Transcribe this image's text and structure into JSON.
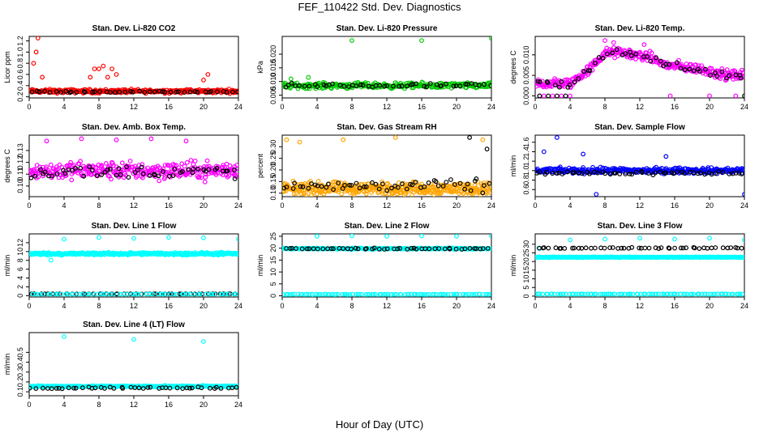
{
  "figure": {
    "title": "FEF_110422  Std. Dev. Diagnostics",
    "xlabel": "Hour of Day (UTC)"
  },
  "chart_data": [
    {
      "type": "scatter",
      "title": "Stan. Dev. Li-820 CO2",
      "ylabel": "Licor ppm",
      "xlim": [
        0,
        24
      ],
      "ylim": [
        0.18,
        1.28
      ],
      "xticks": [
        0,
        4,
        8,
        12,
        16,
        20,
        24
      ],
      "yticks": [
        0.2,
        0.4,
        0.6,
        0.8,
        1.0,
        1.2
      ],
      "ytick_labels": [
        "0.2",
        "0.4",
        "0.6",
        "0.8",
        "1.0",
        "1.2"
      ],
      "grid": false,
      "series": [
        {
          "color": "#ff0000",
          "base": 0.3,
          "spread": 0.05,
          "density": 300,
          "outliers": [
            [
              0.8,
              1.0
            ],
            [
              1.0,
              1.25
            ],
            [
              0.5,
              0.8
            ],
            [
              7.5,
              0.7
            ],
            [
              8.0,
              0.7
            ],
            [
              8.5,
              0.75
            ],
            [
              9.0,
              0.55
            ],
            [
              9.5,
              0.7
            ],
            [
              10.0,
              0.6
            ],
            [
              20.0,
              0.5
            ],
            [
              20.5,
              0.6
            ],
            [
              1.5,
              0.55
            ],
            [
              7.0,
              0.55
            ]
          ]
        },
        {
          "color": "#000000",
          "base": 0.29,
          "spread": 0.02,
          "density": 45,
          "outliers": []
        }
      ]
    },
    {
      "type": "scatter",
      "title": "Stan. Dev. Li-820 Pressure",
      "ylabel": "kPa",
      "xlim": [
        0,
        24
      ],
      "ylim": [
        0.004,
        0.0265
      ],
      "xticks": [
        0,
        4,
        8,
        12,
        16,
        20,
        24
      ],
      "yticks": [
        0.005,
        0.01,
        0.015,
        0.02
      ],
      "ytick_labels": [
        "0.005",
        "0.010",
        "0.015",
        "0.020"
      ],
      "grid": false,
      "series": [
        {
          "color": "#00cc00",
          "base": 0.0085,
          "spread": 0.0015,
          "density": 300,
          "outliers": [
            [
              8.0,
              0.025
            ],
            [
              16.0,
              0.025
            ],
            [
              24.0,
              0.0258
            ],
            [
              1.0,
              0.011
            ],
            [
              3.0,
              0.0115
            ]
          ]
        },
        {
          "color": "#000000",
          "base": 0.0085,
          "spread": 0.0012,
          "density": 50,
          "outliers": []
        }
      ]
    },
    {
      "type": "scatter",
      "title": "Stan. Dev. Li-820 Temp.",
      "ylabel": "degrees C",
      "xlim": [
        0,
        24
      ],
      "ylim": [
        -0.0005,
        0.0145
      ],
      "xticks": [
        0,
        4,
        8,
        12,
        16,
        20,
        24
      ],
      "yticks": [
        0.0,
        0.005,
        0.01
      ],
      "ytick_labels": [
        "0.000",
        "0.005",
        "0.010"
      ],
      "grid": false,
      "profile": [
        [
          0,
          0.003
        ],
        [
          4,
          0.003
        ],
        [
          6.5,
          0.007
        ],
        [
          8,
          0.0105
        ],
        [
          10,
          0.0105
        ],
        [
          13,
          0.0095
        ],
        [
          15,
          0.0075
        ],
        [
          17,
          0.007
        ],
        [
          19,
          0.0065
        ],
        [
          20,
          0.006
        ],
        [
          22,
          0.005
        ],
        [
          24,
          0.005
        ]
      ],
      "series": [
        {
          "color": "#ff00ff",
          "base": 0.006,
          "spread": 0.0018,
          "density": 320,
          "outliers": [
            [
              8.0,
              0.0135
            ],
            [
              9.0,
              0.013
            ],
            [
              12.5,
              0.0125
            ],
            [
              0.5,
              0.0
            ],
            [
              1.0,
              0.0
            ],
            [
              2.0,
              0.0
            ],
            [
              3.0,
              0.0
            ],
            [
              4.0,
              0.0
            ],
            [
              15.5,
              0.0
            ],
            [
              20.0,
              0.0
            ],
            [
              23.0,
              0.0
            ]
          ]
        },
        {
          "color": "#000000",
          "base": 0.006,
          "spread": 0.0015,
          "density": 50,
          "outliers": [
            [
              0.5,
              0.0
            ],
            [
              1.5,
              0.0
            ],
            [
              2.5,
              0.0
            ],
            [
              3.5,
              0.0
            ],
            [
              24.0,
              0.0
            ]
          ]
        }
      ]
    },
    {
      "type": "scatter",
      "title": "Stan. Dev. Amb. Box Temp.",
      "ylabel": "degrees C",
      "xlim": [
        0,
        24
      ],
      "ylim": [
        0.091,
        0.143
      ],
      "xticks": [
        0,
        4,
        8,
        12,
        16,
        20,
        24
      ],
      "yticks": [
        0.1,
        0.11,
        0.12,
        0.13
      ],
      "ytick_labels": [
        "0.10",
        "0.11",
        "0.12",
        "0.13"
      ],
      "grid": false,
      "series": [
        {
          "color": "#ff00ff",
          "base": 0.113,
          "spread": 0.011,
          "density": 320,
          "outliers": [
            [
              2.0,
              0.138
            ],
            [
              6.0,
              0.14
            ],
            [
              10.0,
              0.139
            ],
            [
              14.0,
              0.14
            ],
            [
              18.0,
              0.138
            ]
          ]
        },
        {
          "color": "#000000",
          "base": 0.112,
          "spread": 0.008,
          "density": 55,
          "outliers": []
        }
      ]
    },
    {
      "type": "scatter",
      "title": "Stan. Dev. Gas Stream RH",
      "ylabel": "percent",
      "xlim": [
        0,
        24
      ],
      "ylim": [
        0.085,
        0.35
      ],
      "xticks": [
        0,
        4,
        8,
        12,
        16,
        20,
        24
      ],
      "yticks": [
        0.1,
        0.15,
        0.2,
        0.25,
        0.3
      ],
      "ytick_labels": [
        "0.10",
        "0.15",
        "0.20",
        "0.25",
        "0.30"
      ],
      "grid": false,
      "series": [
        {
          "color": "#ffa500",
          "base": 0.12,
          "spread": 0.04,
          "density": 380,
          "outliers": [
            [
              0.5,
              0.33
            ],
            [
              2.0,
              0.32
            ],
            [
              7.0,
              0.33
            ],
            [
              13.0,
              0.34
            ],
            [
              23.0,
              0.33
            ]
          ]
        },
        {
          "color": "#000000",
          "base": 0.13,
          "spread": 0.04,
          "density": 55,
          "outliers": [
            [
              21.5,
              0.34
            ],
            [
              23.5,
              0.29
            ]
          ]
        }
      ]
    },
    {
      "type": "scatter",
      "title": "Stan. Dev. Sample Flow",
      "ylabel": "ml/min",
      "xlim": [
        0,
        24
      ],
      "ylim": [
        0.45,
        1.75
      ],
      "xticks": [
        0,
        4,
        8,
        12,
        16,
        20,
        24
      ],
      "yticks": [
        0.6,
        0.8,
        1.0,
        1.2,
        1.4,
        1.6
      ],
      "ytick_labels": [
        "0.6",
        "0.8",
        "1.0",
        "1.2",
        "1.4",
        "1.6"
      ],
      "grid": false,
      "series": [
        {
          "color": "#0000ff",
          "base": 1.0,
          "spread": 0.09,
          "density": 320,
          "outliers": [
            [
              2.5,
              1.7
            ],
            [
              7.0,
              0.5
            ],
            [
              24.0,
              0.5
            ],
            [
              1.0,
              1.4
            ],
            [
              5.5,
              1.35
            ],
            [
              15.0,
              1.3
            ]
          ]
        },
        {
          "color": "#000000",
          "base": 0.95,
          "spread": 0.06,
          "density": 55,
          "outliers": []
        }
      ]
    },
    {
      "type": "scatter",
      "title": "Stan. Dev. Line 1 Flow",
      "ylabel": "ml/min",
      "xlim": [
        0,
        24
      ],
      "ylim": [
        -0.3,
        14.0
      ],
      "xticks": [
        0,
        4,
        8,
        12,
        16,
        20,
        24
      ],
      "yticks": [
        0,
        2,
        4,
        6,
        8,
        10,
        12
      ],
      "ytick_labels": [
        "0",
        "2",
        "4",
        "6",
        "8",
        "10",
        "12"
      ],
      "grid": false,
      "series": [
        {
          "color": "#00ffff",
          "base": 9.5,
          "spread": 0.45,
          "density": 340,
          "outliers": [
            [
              4.0,
              12.8
            ],
            [
              8.0,
              13.2
            ],
            [
              12.0,
              13.0
            ],
            [
              16.0,
              13.2
            ],
            [
              20.0,
              13.1
            ],
            [
              24.0,
              12.8
            ],
            [
              2.5,
              8.0
            ]
          ]
        },
        {
          "color": "#000000",
          "base": 0.4,
          "spread": 0.05,
          "density": 50,
          "outliers": []
        },
        {
          "color": "#00ffff",
          "base": 0.35,
          "spread": 0.05,
          "density": 60,
          "outliers": []
        }
      ]
    },
    {
      "type": "scatter",
      "title": "Stan. Dev. Line 2 Flow",
      "ylabel": "ml/min",
      "xlim": [
        0,
        24
      ],
      "ylim": [
        -0.5,
        26.0
      ],
      "xticks": [
        0,
        4,
        8,
        12,
        16,
        20,
        24
      ],
      "yticks": [
        0,
        5,
        10,
        15,
        20,
        25
      ],
      "ytick_labels": [
        "0",
        "5",
        "10",
        "15",
        "20",
        "25"
      ],
      "grid": false,
      "series": [
        {
          "color": "#00ffff",
          "base": 19.8,
          "spread": 0.4,
          "density": 300,
          "outliers": [
            [
              4.0,
              25.0
            ],
            [
              8.0,
              25.2
            ],
            [
              12.0,
              25.0
            ],
            [
              16.0,
              25.1
            ],
            [
              20.0,
              25.0
            ],
            [
              24.0,
              25.0
            ]
          ]
        },
        {
          "color": "#000000",
          "base": 19.8,
          "spread": 0.35,
          "density": 50,
          "outliers": []
        },
        {
          "color": "#00ffff",
          "base": 0.6,
          "spread": 0.15,
          "density": 90,
          "outliers": []
        }
      ]
    },
    {
      "type": "scatter",
      "title": "Stan. Dev. Line 3 Flow",
      "ylabel": "ml/min",
      "xlim": [
        0,
        24
      ],
      "ylim": [
        -0.5,
        36.0
      ],
      "xticks": [
        0,
        4,
        8,
        12,
        16,
        20,
        24
      ],
      "yticks": [
        0,
        5,
        10,
        15,
        20,
        25,
        30
      ],
      "ytick_labels": [
        "0",
        "5",
        "10",
        "15",
        "20",
        "25",
        "30"
      ],
      "grid": false,
      "series": [
        {
          "color": "#00ffff",
          "base": 22.5,
          "spread": 0.3,
          "density": 300,
          "outliers": [
            [
              4.0,
              32.5
            ],
            [
              8.0,
              33.0
            ],
            [
              12.0,
              33.5
            ],
            [
              16.0,
              33.0
            ],
            [
              20.0,
              33.5
            ],
            [
              24.0,
              32.5
            ],
            [
              0.5,
              27.5
            ]
          ]
        },
        {
          "color": "#000000",
          "base": 27.8,
          "spread": 0.4,
          "density": 50,
          "outliers": []
        },
        {
          "color": "#00ffff",
          "base": 1.2,
          "spread": 0.15,
          "density": 90,
          "outliers": []
        }
      ]
    },
    {
      "type": "scatter",
      "title": "Stan. Dev. Line 4 (LT) Flow",
      "ylabel": "ml/min",
      "xlim": [
        0,
        24
      ],
      "ylim": [
        0.06,
        0.7
      ],
      "xticks": [
        0,
        4,
        8,
        12,
        16,
        20,
        24
      ],
      "yticks": [
        0.1,
        0.2,
        0.3,
        0.4,
        0.5
      ],
      "ytick_labels": [
        "0.1",
        "0.2",
        "0.3",
        "0.4",
        "0.5"
      ],
      "grid": false,
      "series": [
        {
          "color": "#00ffff",
          "base": 0.155,
          "spread": 0.01,
          "density": 330,
          "outliers": [
            [
              4.0,
              0.66
            ],
            [
              12.0,
              0.63
            ],
            [
              20.0,
              0.61
            ]
          ]
        },
        {
          "color": "#000000",
          "base": 0.14,
          "spread": 0.012,
          "density": 45,
          "outliers": []
        }
      ]
    }
  ]
}
